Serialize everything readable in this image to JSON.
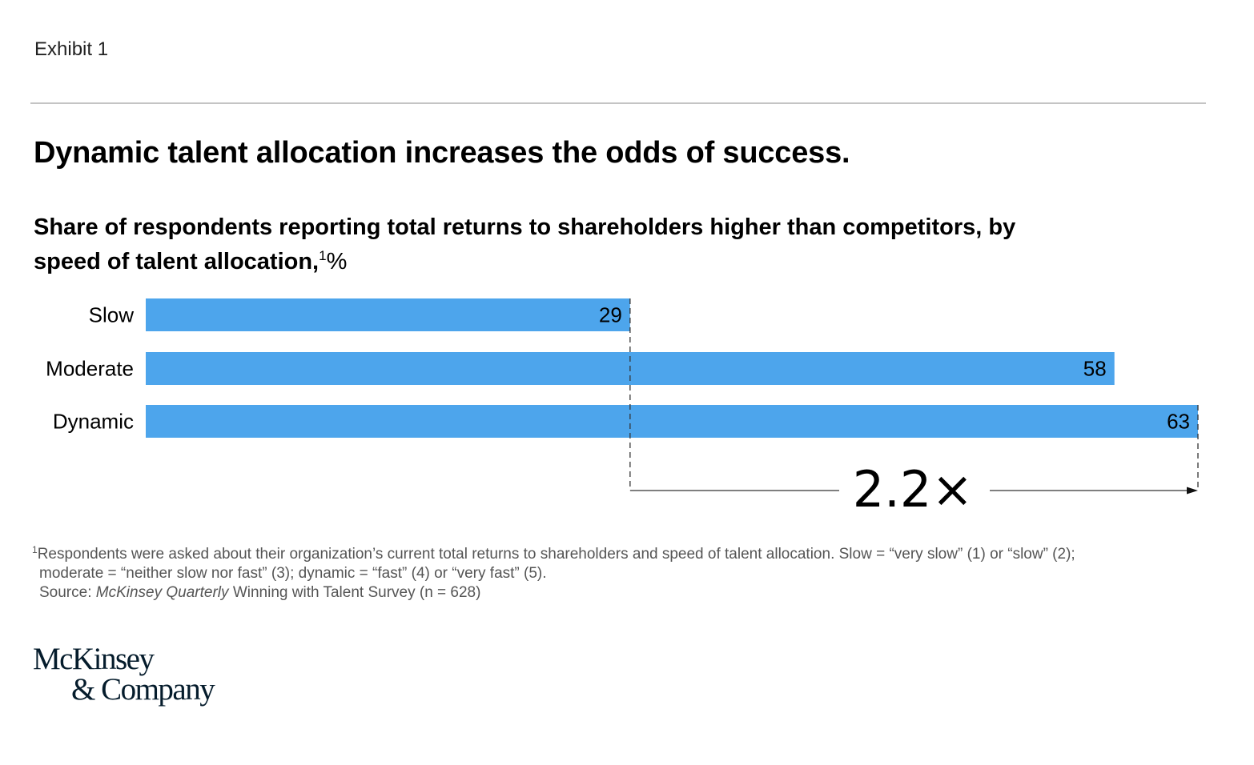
{
  "exhibit_label": "Exhibit 1",
  "title": "Dynamic talent allocation increases the odds of success.",
  "subtitle": {
    "text": "Share of respondents reporting total returns to shareholders higher than competitors, by speed of talent allocation,",
    "footnote_marker": "1",
    "unit": "%"
  },
  "chart_data": {
    "type": "bar",
    "orientation": "horizontal",
    "categories": [
      "Slow",
      "Moderate",
      "Dynamic"
    ],
    "values": [
      29,
      58,
      63
    ],
    "unit": "%",
    "xlim": [
      0,
      63
    ],
    "grid": false,
    "bar_color": "#4da5ec",
    "annotation": {
      "label": "2.2×",
      "from_category": "Slow",
      "to_category": "Dynamic"
    }
  },
  "footnotes": {
    "marker": "1",
    "line1": "Respondents were asked about their organization’s current total returns to shareholders and speed of talent allocation. Slow = “very slow” (1) or “slow” (2);",
    "line2": "moderate = “neither slow nor fast” (3); dynamic = “fast” (4) or “very fast” (5).",
    "source_prefix": "Source: ",
    "source_italic": "McKinsey Quarterly",
    "source_rest": " Winning with Talent Survey (n = 628)"
  },
  "logo": {
    "line1": "McKinsey",
    "line2": "& Company"
  }
}
